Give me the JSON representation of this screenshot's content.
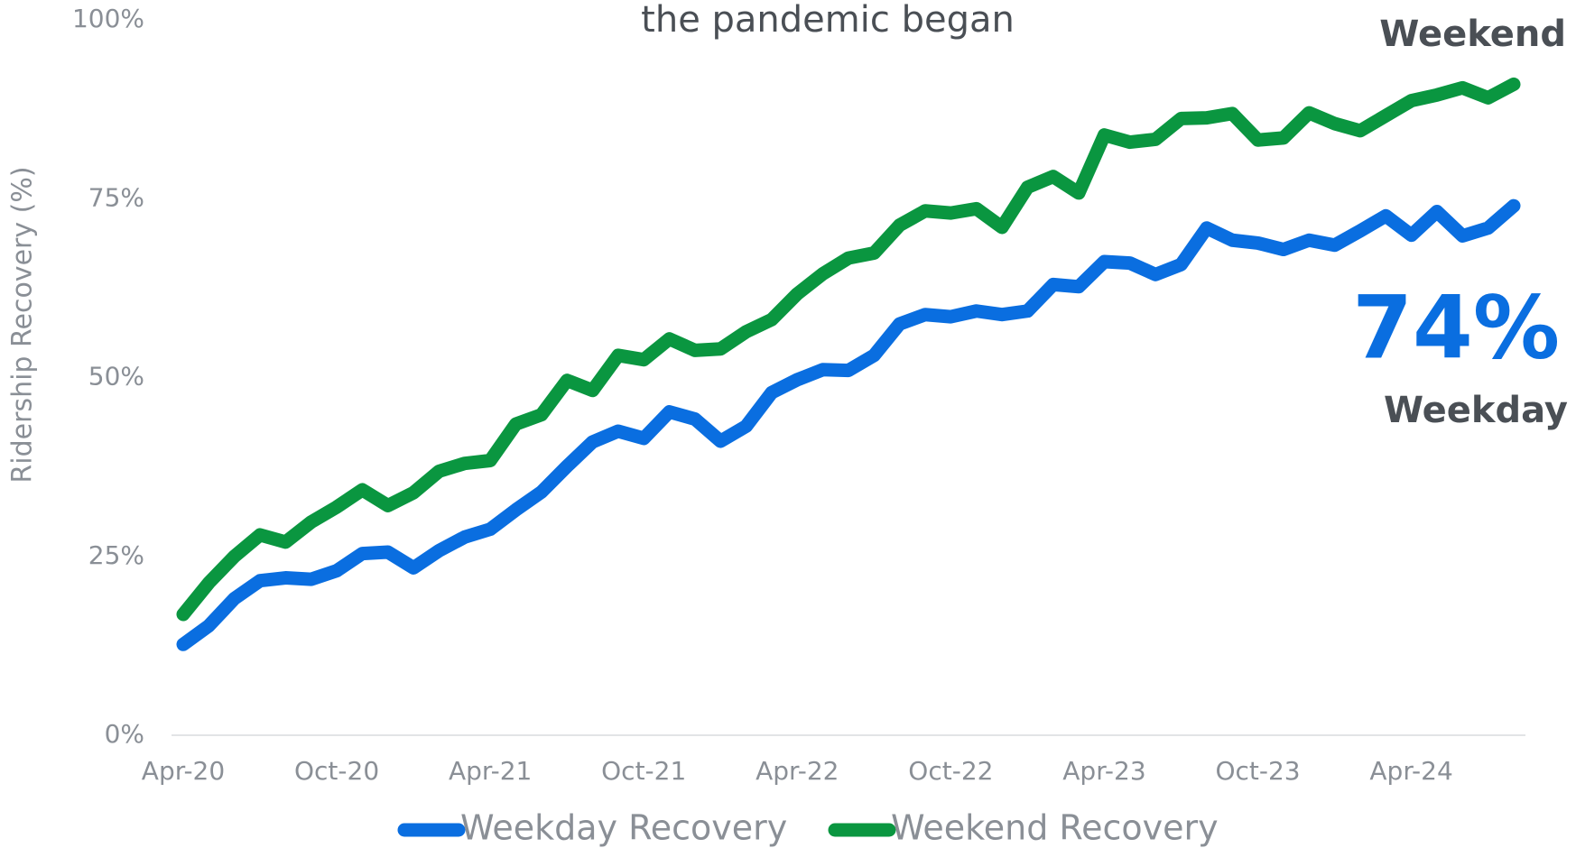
{
  "chart_data": {
    "type": "line",
    "title": "the pandemic began",
    "y_label": "Ridership Recovery (%)",
    "categories": [
      "Apr-20",
      null,
      null,
      null,
      null,
      null,
      "Oct-20",
      null,
      null,
      null,
      null,
      null,
      "Apr-21",
      null,
      null,
      null,
      null,
      null,
      "Oct-21",
      null,
      null,
      null,
      null,
      null,
      "Apr-22",
      null,
      null,
      null,
      null,
      null,
      "Oct-22",
      null,
      null,
      null,
      null,
      null,
      "Apr-23",
      null,
      null,
      null,
      null,
      null,
      "Oct-23",
      null,
      null,
      null,
      null,
      null,
      "Apr-24",
      null,
      null,
      null,
      null
    ],
    "series": [
      {
        "name": "Weekday Recovery",
        "color": "#0a6ee0",
        "values": [
          12.7,
          15.3,
          19.1,
          21.6,
          22.0,
          21.8,
          23.0,
          25.4,
          25.6,
          23.4,
          25.8,
          27.7,
          28.8,
          31.5,
          34.0,
          37.6,
          41.0,
          42.5,
          41.5,
          45.2,
          44.2,
          41.1,
          43.2,
          47.9,
          49.7,
          51.1,
          51.0,
          53.1,
          57.5,
          58.8,
          58.5,
          59.3,
          58.8,
          59.3,
          63.0,
          62.7,
          66.2,
          66.0,
          64.4,
          65.8,
          70.9,
          69.2,
          68.8,
          67.9,
          69.2,
          68.5,
          70.5,
          72.6,
          69.9,
          73.2,
          69.8,
          70.9,
          74.0
        ]
      },
      {
        "name": "Weekend Recovery",
        "color": "#0a9640",
        "values": [
          16.9,
          21.3,
          25.0,
          28.0,
          27.0,
          29.8,
          31.9,
          34.3,
          32.1,
          33.9,
          36.9,
          38.0,
          38.4,
          43.5,
          44.8,
          49.6,
          48.2,
          53.1,
          52.5,
          55.4,
          53.8,
          54.0,
          56.4,
          58.1,
          61.7,
          64.5,
          66.7,
          67.4,
          71.3,
          73.3,
          73.0,
          73.6,
          71.0,
          76.6,
          78.1,
          75.8,
          83.9,
          82.9,
          83.3,
          86.2,
          86.3,
          86.9,
          83.2,
          83.5,
          87.0,
          85.5,
          84.5,
          86.6,
          88.7,
          89.5,
          90.5,
          89.1,
          91.0
        ]
      }
    ],
    "ylim": [
      0,
      100
    ],
    "yticks": [
      {
        "value": 0,
        "label": "0%"
      },
      {
        "value": 25,
        "label": "25%"
      },
      {
        "value": 50,
        "label": "50%"
      },
      {
        "value": 75,
        "label": "75%"
      },
      {
        "value": 100,
        "label": "100%"
      }
    ],
    "grid": false,
    "legend": "bottom",
    "annotations": [
      {
        "text": "Weekend",
        "color": "#4a4f55"
      },
      {
        "text": "74%",
        "color": "#0a6ee0"
      },
      {
        "text": "Weekday",
        "color": "#4a4f55"
      }
    ]
  }
}
